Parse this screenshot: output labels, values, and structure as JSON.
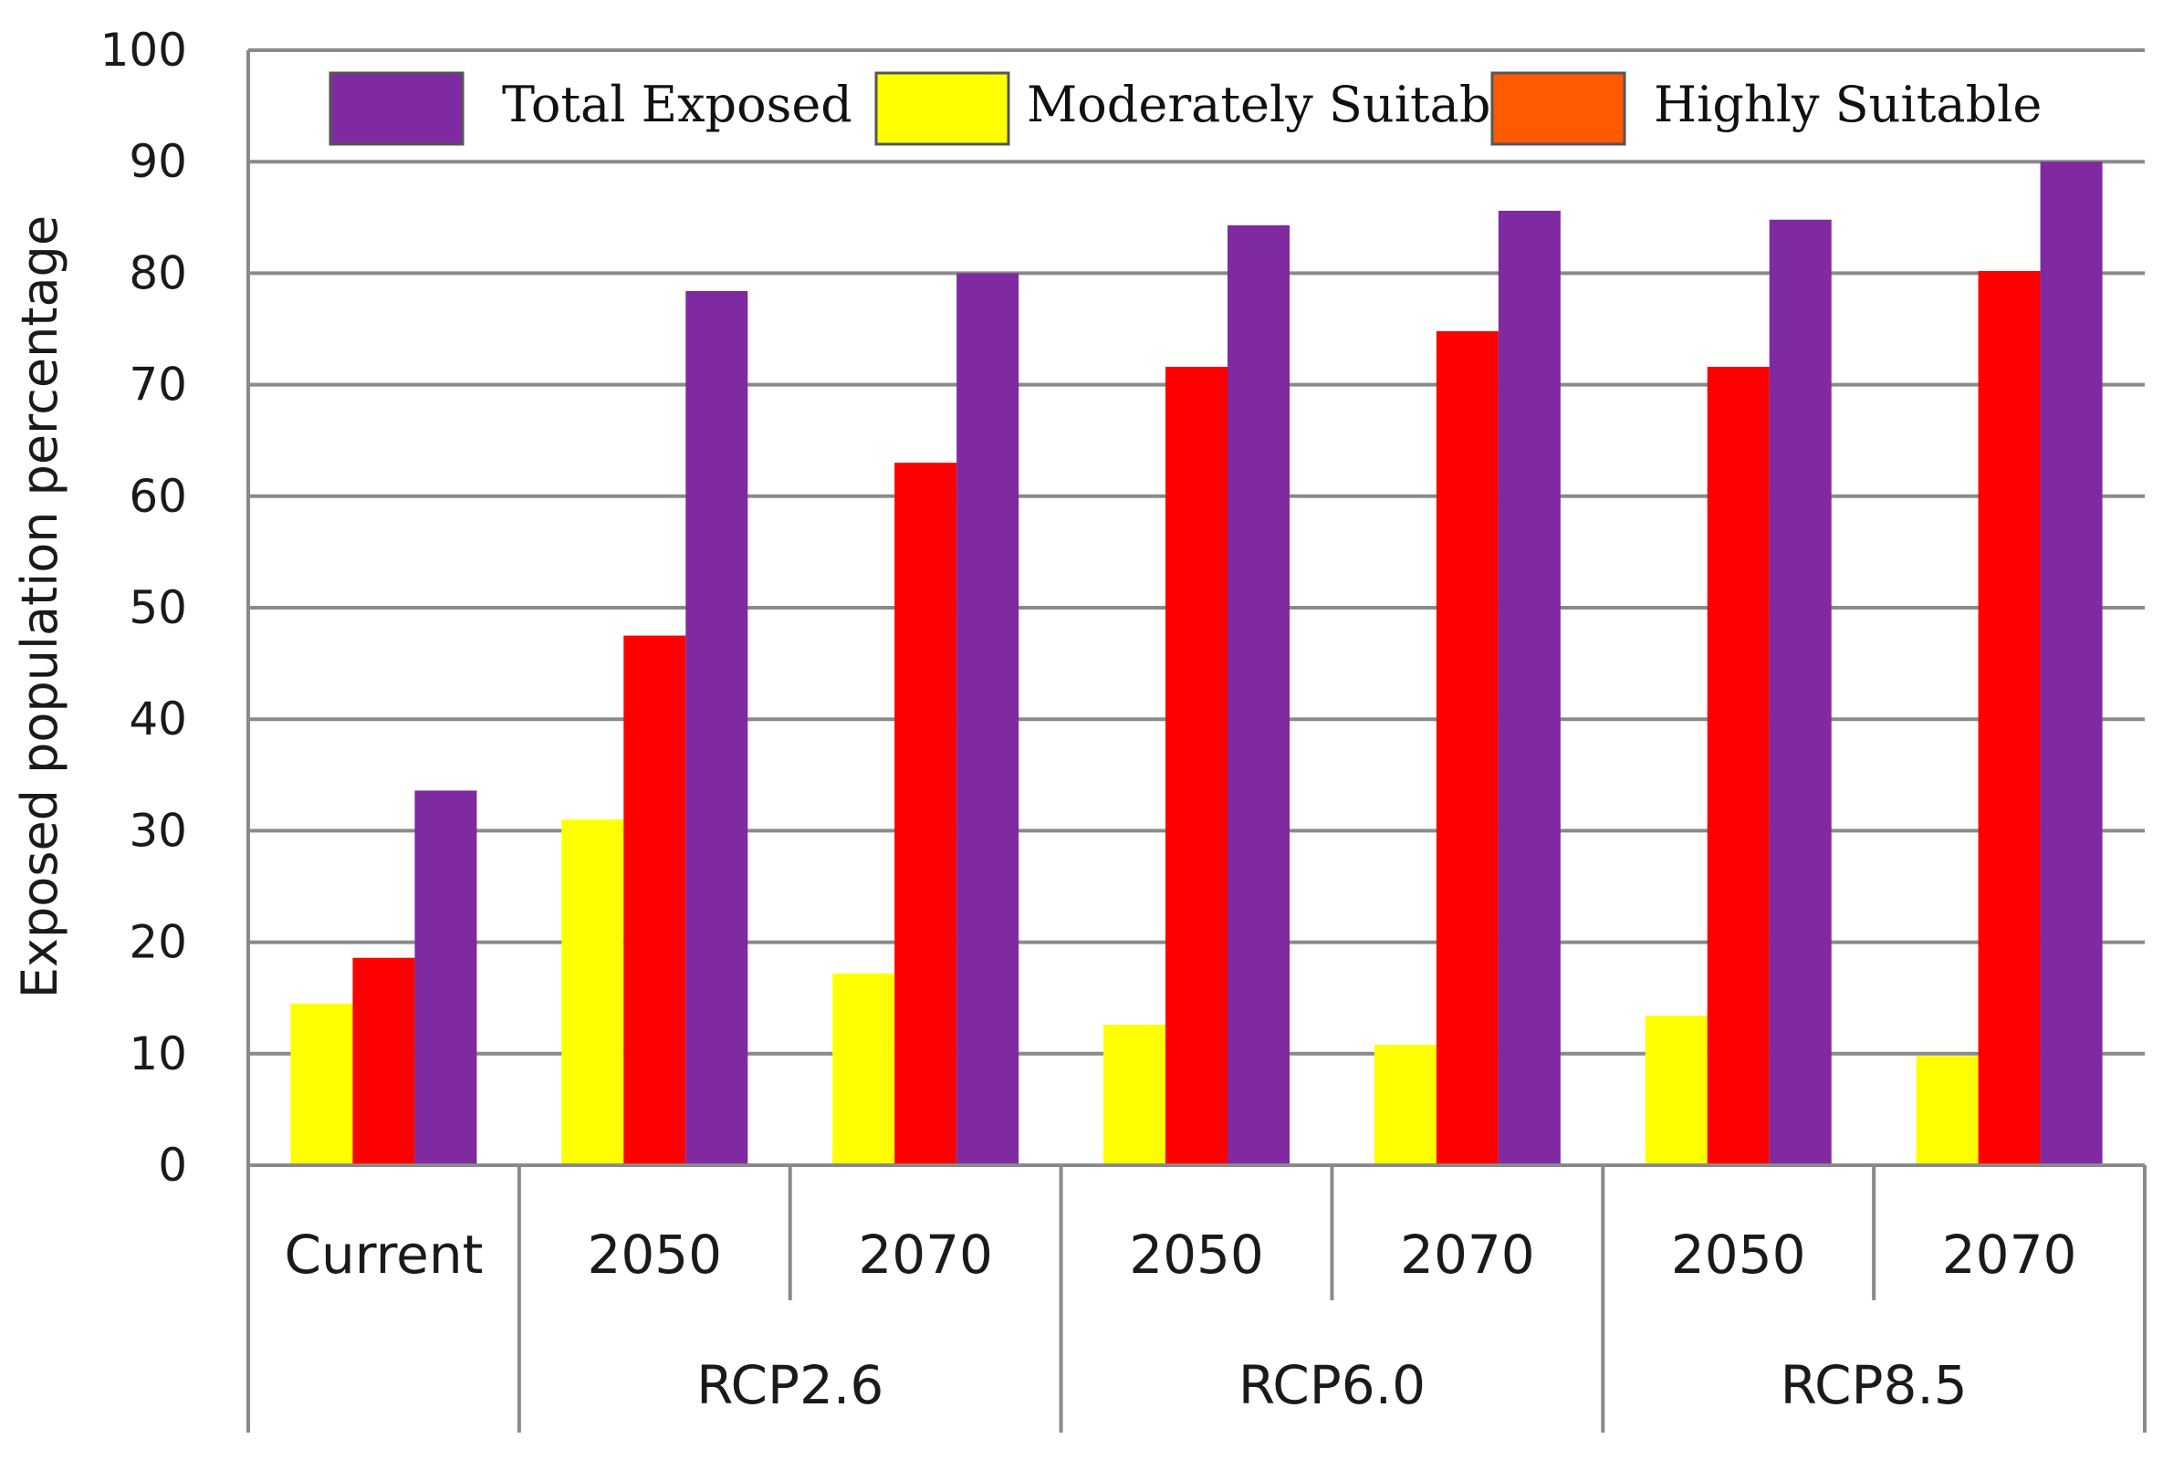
{
  "chart_data": {
    "type": "bar",
    "title": "",
    "xlabel": "",
    "ylabel": "Exposed population percentage",
    "ylim": [
      0,
      100
    ],
    "yticks": [
      0,
      10,
      20,
      30,
      40,
      50,
      60,
      70,
      80,
      90,
      100
    ],
    "grid": true,
    "legend_position": "top",
    "categories": [
      "Current",
      "2050",
      "2070",
      "2050",
      "2070",
      "2050",
      "2070"
    ],
    "groups": [
      {
        "label": "",
        "span": 1
      },
      {
        "label": "RCP2.6",
        "span": 2
      },
      {
        "label": "RCP6.0",
        "span": 2
      },
      {
        "label": "RCP8.5",
        "span": 2
      }
    ],
    "series": [
      {
        "name": "Moderately Suitable",
        "color": "#FFFF00",
        "values": [
          14.5,
          31,
          17.2,
          12.6,
          10.8,
          13.4,
          9.8
        ]
      },
      {
        "name": "Highly Suitable",
        "color": "#FF0000",
        "values": [
          18.6,
          47.5,
          63,
          71.6,
          74.8,
          71.6,
          80.2
        ]
      },
      {
        "name": "Total Exposed",
        "color": "#7F2AA0",
        "values": [
          33.6,
          78.4,
          80,
          84.3,
          85.6,
          84.8,
          90
        ]
      }
    ],
    "legend": [
      {
        "label": "Total Exposed",
        "color": "#7F2AA0"
      },
      {
        "label": "Moderately Suitable",
        "color": "#FFFF00"
      },
      {
        "label": "Highly Suitable",
        "color": "#FF5A00"
      }
    ]
  }
}
